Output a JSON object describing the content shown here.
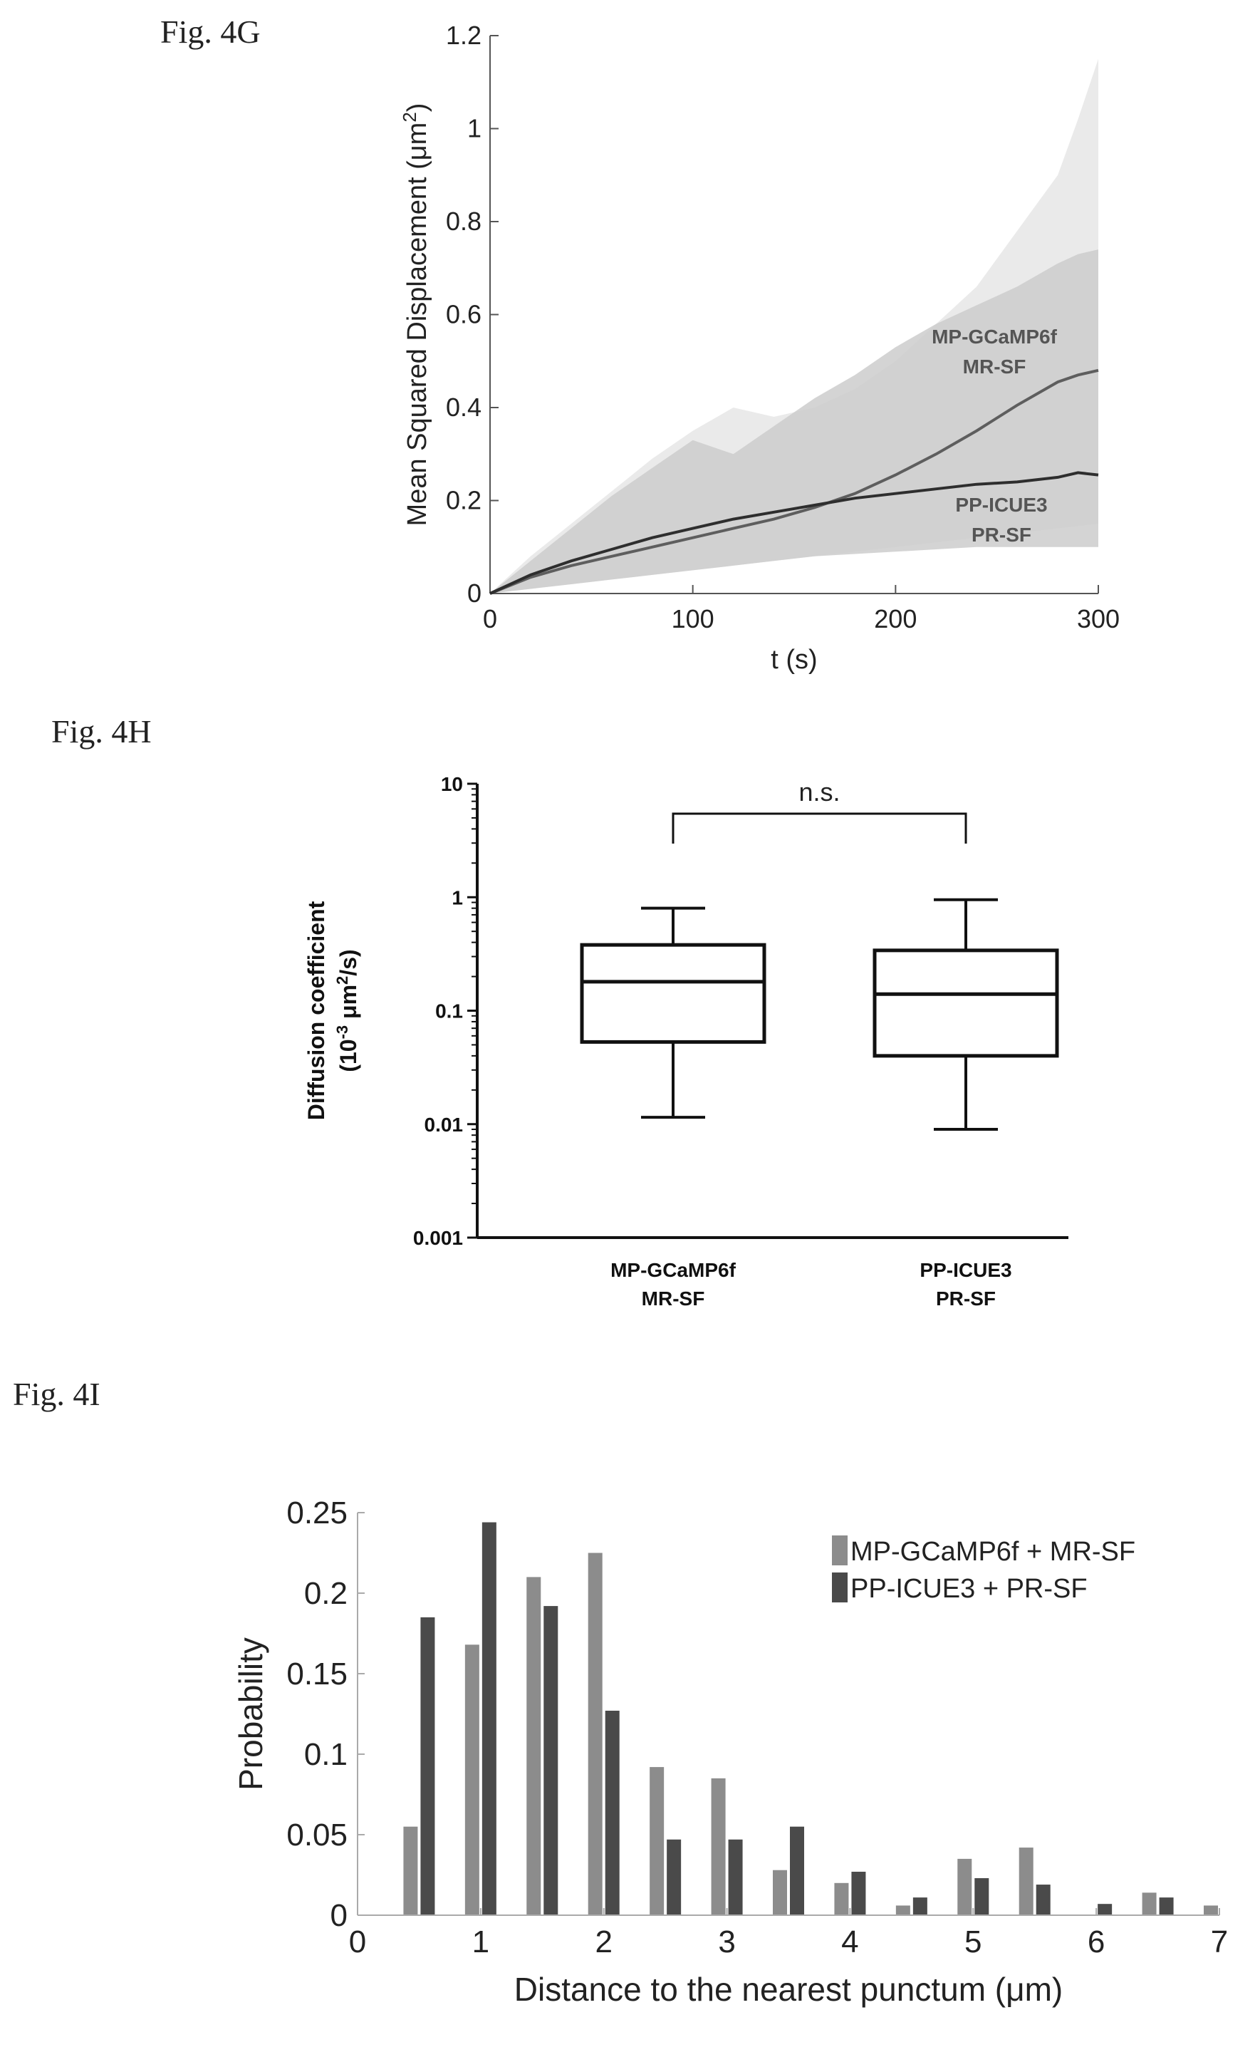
{
  "labels": {
    "g": "Fig. 4G",
    "h": "Fig. 4H",
    "i": "Fig. 4I"
  },
  "chart_data": [
    {
      "type": "line",
      "panel": "Fig. 4G",
      "xlabel": "t (s)",
      "ylabel_main": "Mean Squared Displacement (μm",
      "ylabel_sup": "2",
      "ylabel_end": ")",
      "xlim": [
        0,
        300
      ],
      "ylim": [
        0,
        1.2
      ],
      "xticks": [
        "0",
        "100",
        "200",
        "300"
      ],
      "yticks": [
        "0",
        "0.2",
        "0.4",
        "0.6",
        "0.8",
        "1",
        "1.2"
      ],
      "x": [
        0,
        20,
        40,
        60,
        80,
        100,
        120,
        140,
        160,
        180,
        200,
        220,
        240,
        260,
        280,
        290,
        300
      ],
      "series": [
        {
          "name": "MP-GCaMP6f MR-SF",
          "annotation_lines": [
            "MP-GCaMP6f",
            "MR-SF"
          ],
          "color": "#5e5e5e",
          "values": [
            0,
            0.035,
            0.06,
            0.08,
            0.1,
            0.12,
            0.14,
            0.16,
            0.185,
            0.215,
            0.255,
            0.3,
            0.35,
            0.405,
            0.455,
            0.47,
            0.48
          ],
          "band_upper": [
            0,
            0.08,
            0.15,
            0.22,
            0.29,
            0.35,
            0.4,
            0.38,
            0.4,
            0.44,
            0.5,
            0.58,
            0.66,
            0.78,
            0.9,
            1.02,
            1.15
          ],
          "band_lower": [
            0,
            0.01,
            0.02,
            0.03,
            0.04,
            0.05,
            0.06,
            0.07,
            0.08,
            0.09,
            0.1,
            0.11,
            0.12,
            0.13,
            0.14,
            0.145,
            0.15
          ]
        },
        {
          "name": "PP-ICUE3 PR-SF",
          "annotation_lines": [
            "PP-ICUE3",
            "PR-SF"
          ],
          "color": "#2e2e2e",
          "values": [
            0,
            0.04,
            0.07,
            0.095,
            0.12,
            0.14,
            0.16,
            0.175,
            0.19,
            0.205,
            0.215,
            0.225,
            0.235,
            0.24,
            0.25,
            0.26,
            0.255
          ],
          "band_upper": [
            0,
            0.07,
            0.14,
            0.21,
            0.27,
            0.33,
            0.3,
            0.36,
            0.42,
            0.47,
            0.53,
            0.58,
            0.62,
            0.66,
            0.71,
            0.73,
            0.74
          ],
          "band_lower": [
            0,
            0.01,
            0.02,
            0.03,
            0.04,
            0.05,
            0.06,
            0.07,
            0.08,
            0.085,
            0.09,
            0.095,
            0.1,
            0.1,
            0.1,
            0.1,
            0.1
          ]
        }
      ]
    },
    {
      "type": "box",
      "panel": "Fig. 4H",
      "ylabel_line1": "Diffusion coefficient",
      "ylabel_line2_pre": "(10",
      "ylabel_line2_exp": "-3",
      "ylabel_line2_mid": " μm",
      "ylabel_line2_exp2": "2",
      "ylabel_line2_post": "/s)",
      "scale": "log",
      "ylim": [
        0.001,
        10
      ],
      "yticks": [
        {
          "value": 10,
          "label": "10"
        },
        {
          "value": 1,
          "label": "1"
        },
        {
          "value": 0.1,
          "label": "0.1"
        },
        {
          "value": 0.01,
          "label": "0.01"
        },
        {
          "value": 0.001,
          "label": "0.001"
        }
      ],
      "significance": "n.s.",
      "boxes": [
        {
          "label_lines": [
            "MP-GCaMP6f",
            "MR-SF"
          ],
          "whisker_low": 0.0115,
          "q1": 0.053,
          "median": 0.18,
          "q3": 0.38,
          "whisker_high": 0.8
        },
        {
          "label_lines": [
            "PP-ICUE3",
            "PR-SF"
          ],
          "whisker_low": 0.009,
          "q1": 0.04,
          "median": 0.14,
          "q3": 0.34,
          "whisker_high": 0.95
        }
      ]
    },
    {
      "type": "bar",
      "panel": "Fig. 4I",
      "xlabel": "Distance to the nearest punctum (μm)",
      "ylabel": "Probability",
      "xlim": [
        0,
        7
      ],
      "ylim": [
        0,
        0.25
      ],
      "xticks": [
        "0",
        "1",
        "2",
        "3",
        "4",
        "5",
        "6",
        "7"
      ],
      "yticks": [
        "0",
        "0.05",
        "0.1",
        "0.15",
        "0.2",
        "0.25"
      ],
      "legend_position": "top-right",
      "categories": [
        "0.5",
        "1",
        "1.5",
        "2",
        "2.5",
        "3",
        "3.5",
        "4",
        "4.5",
        "5",
        "5.5",
        "6",
        "6.5",
        "7"
      ],
      "series": [
        {
          "name": "MP-GCaMP6f + MR-SF",
          "color": "#8c8c8c",
          "values": [
            0.055,
            0.168,
            0.21,
            0.225,
            0.092,
            0.085,
            0.028,
            0.02,
            0.006,
            0.035,
            0.042,
            0,
            0.014,
            0.006
          ]
        },
        {
          "name": "PP-ICUE3 + PR-SF",
          "color": "#4a4a4a",
          "values": [
            0.185,
            0.244,
            0.192,
            0.127,
            0.047,
            0.047,
            0.055,
            0.027,
            0.011,
            0.023,
            0.019,
            0.007,
            0.011,
            0
          ]
        }
      ]
    }
  ]
}
